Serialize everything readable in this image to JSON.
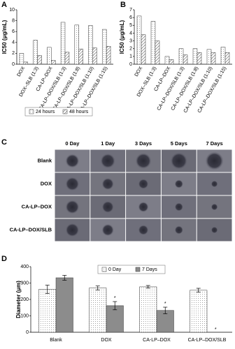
{
  "chart_data": [
    {
      "type": "bar",
      "panel_label": "A",
      "y_label": "IC50 (μg/mL)",
      "categories": [
        "DOX",
        "DOX–SLB (1:3)",
        "CA-LP–DOX",
        "CA-LP–DOX/SLB (1:3)",
        "CA-LP–DOX/SLB (1:8)",
        "CA-LP–DOX/SLB (1:10)",
        "CA-LP–DOX/SLB (1:15)"
      ],
      "series": [
        {
          "name": "24 hours",
          "pattern": "dots",
          "values": [
            2.0,
            4.4,
            3.1,
            7.7,
            7.2,
            7.1,
            6.4
          ]
        },
        {
          "name": "48 hours",
          "pattern": "hatch",
          "values": [
            0.4,
            1.6,
            0.7,
            2.2,
            2.8,
            3.0,
            3.3
          ]
        }
      ],
      "ylim": [
        0,
        10
      ],
      "yticks": [
        0,
        2,
        4,
        6,
        8,
        10
      ],
      "legend": "bottom"
    },
    {
      "type": "bar",
      "panel_label": "B",
      "y_label": "IC50 (μg/mL)",
      "categories": [
        "DOX",
        "DOX–SLB (1:3)",
        "CA-LP–DOX",
        "CA-LP–DOX/SLB (1:3)",
        "CA-LP–DOX/SLB (1:8)",
        "CA-LP–DOX/SLB (1:10)",
        "CA-LP–DOX/SLB (1:15)"
      ],
      "series": [
        {
          "pattern": "dots",
          "values": [
            6.2,
            5.5,
            1.0,
            2.0,
            2.0,
            1.9,
            2.2
          ]
        },
        {
          "pattern": "hatch",
          "values": [
            3.8,
            3.0,
            0.6,
            1.2,
            1.5,
            1.5,
            1.5
          ]
        }
      ],
      "ylim": [
        0,
        7
      ],
      "yticks": [
        0,
        1,
        2,
        3,
        4,
        5,
        6,
        7
      ]
    },
    {
      "type": "bar",
      "panel_label": "D",
      "y_label": "Diameter (μm)",
      "categories": [
        "Blank",
        "DOX",
        "CA-LP–DOX",
        "CA-LP–DOX/SLB"
      ],
      "series": [
        {
          "name": "0 Day",
          "pattern": "dots",
          "values": [
            262,
            270,
            277,
            256
          ],
          "errors": [
            25,
            12,
            8,
            12
          ]
        },
        {
          "name": "7 Days",
          "color": "#8c8c8c",
          "values": [
            332,
            162,
            133,
            null
          ],
          "errors": [
            15,
            25,
            20,
            null
          ],
          "significance": [
            null,
            "*",
            "*",
            "*"
          ]
        }
      ],
      "ylim": [
        0,
        400
      ],
      "yticks": [
        0,
        100,
        200,
        300,
        400
      ],
      "legend": "top"
    }
  ],
  "image_grid": {
    "panel_label": "C",
    "columns": [
      "0 Day",
      "1 Day",
      "3 Days",
      "5 Days",
      "7 Days"
    ],
    "rows": [
      "Blank",
      "DOX",
      "CA-LP–DOX",
      "CA-LP–DOX/SLB"
    ]
  }
}
